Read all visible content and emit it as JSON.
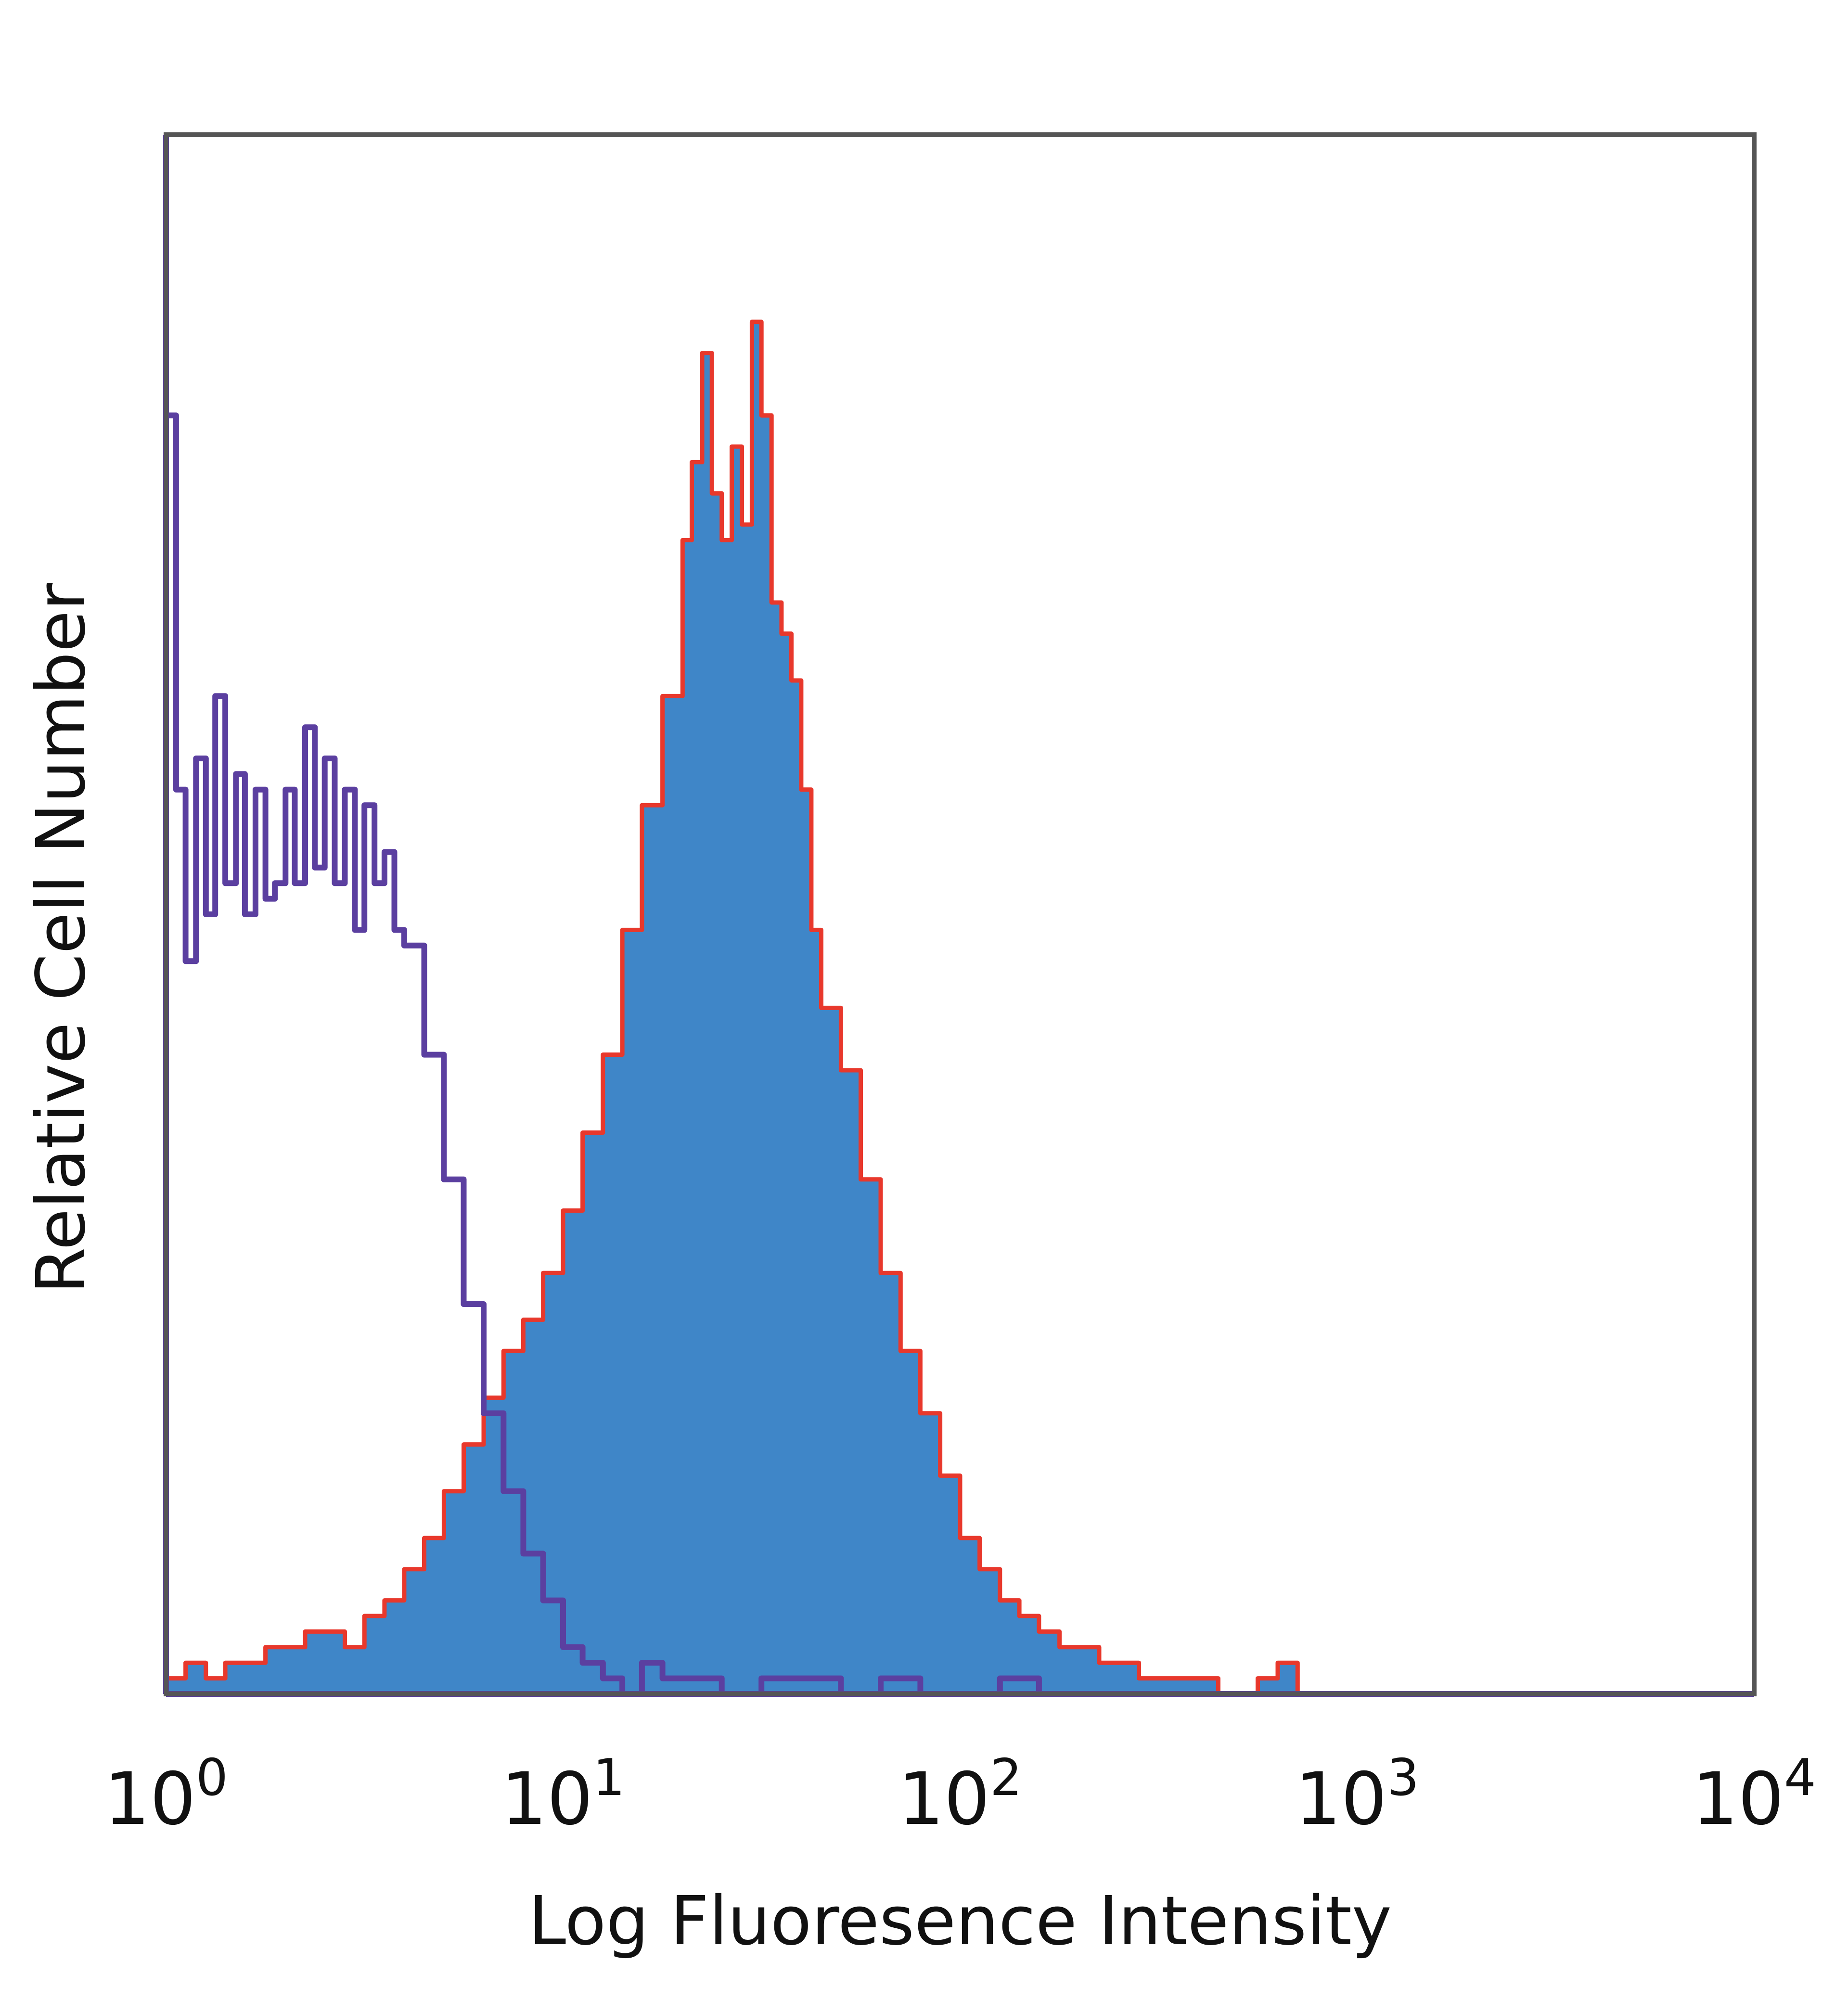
{
  "chart_data": {
    "type": "area",
    "title": "",
    "xlabel": "Log Fluoresence Intensity",
    "ylabel": "Relative Cell Number",
    "x_scale": "log",
    "xlim": [
      1,
      10000
    ],
    "ylim": [
      0,
      100
    ],
    "grid": false,
    "x_ticks": [
      {
        "base": "10",
        "exp": "0"
      },
      {
        "base": "10",
        "exp": "1"
      },
      {
        "base": "10",
        "exp": "2"
      },
      {
        "base": "10",
        "exp": "3"
      },
      {
        "base": "10",
        "exp": "4"
      }
    ],
    "colors": {
      "frame": "#555555",
      "stained_fill": "#3f86c8",
      "stained_edge": "#e8382c",
      "control_line": "#5b3fa0"
    },
    "series": [
      {
        "style": "filled",
        "x": [
          1.0,
          1.12,
          1.26,
          1.41,
          1.58,
          1.78,
          2.0,
          2.24,
          2.51,
          2.82,
          3.16,
          3.55,
          3.98,
          4.47,
          5.01,
          5.62,
          6.31,
          7.08,
          7.94,
          8.91,
          10.0,
          11.2,
          12.6,
          14.1,
          15.8,
          17.8,
          20.0,
          21.1,
          22.4,
          23.7,
          25.1,
          26.6,
          28.2,
          29.9,
          31.6,
          33.5,
          35.5,
          37.6,
          39.8,
          42.2,
          44.7,
          50.1,
          56.2,
          63.1,
          70.8,
          79.4,
          89.1,
          100,
          112,
          126,
          141,
          158,
          178,
          200,
          224,
          251,
          282,
          316,
          355,
          398,
          447,
          501,
          562,
          631,
          708
        ],
        "values": [
          1,
          2,
          1,
          2,
          2,
          3,
          3,
          4,
          4,
          3,
          5,
          6,
          8,
          10,
          13,
          16,
          19,
          22,
          24,
          27,
          31,
          36,
          41,
          49,
          57,
          64,
          74,
          79,
          86,
          77,
          74,
          80,
          75,
          88,
          82,
          70,
          68,
          65,
          58,
          49,
          44,
          40,
          33,
          27,
          22,
          18,
          14,
          10,
          8,
          6,
          5,
          4,
          3,
          3,
          2,
          2,
          1,
          1,
          1,
          1,
          0,
          0,
          1,
          2,
          0
        ]
      },
      {
        "style": "line",
        "x": [
          1.0,
          1.06,
          1.12,
          1.19,
          1.26,
          1.33,
          1.41,
          1.5,
          1.58,
          1.68,
          1.78,
          1.88,
          2.0,
          2.11,
          2.24,
          2.37,
          2.51,
          2.66,
          2.82,
          2.99,
          3.16,
          3.35,
          3.55,
          3.76,
          3.98,
          4.47,
          5.01,
          5.62,
          6.31,
          7.08,
          7.94,
          8.91,
          10.0,
          11.2,
          12.6,
          14.1,
          15.8,
          17.8,
          20.0,
          25.1,
          31.6,
          39.8,
          50.1,
          63.1,
          79.4,
          100,
          126,
          158,
          200,
          251,
          316,
          398,
          501,
          631,
          794,
          1000
        ],
        "values": [
          82,
          58,
          47,
          60,
          50,
          64,
          52,
          59,
          50,
          58,
          51,
          52,
          58,
          52,
          62,
          53,
          60,
          52,
          58,
          49,
          57,
          52,
          54,
          49,
          48,
          41,
          33,
          25,
          18,
          13,
          9,
          6,
          3,
          2,
          1,
          0,
          2,
          1,
          1,
          0,
          1,
          1,
          0,
          1,
          0,
          0,
          1,
          0,
          0,
          0,
          0,
          0,
          0,
          0,
          0,
          0
        ]
      }
    ]
  }
}
